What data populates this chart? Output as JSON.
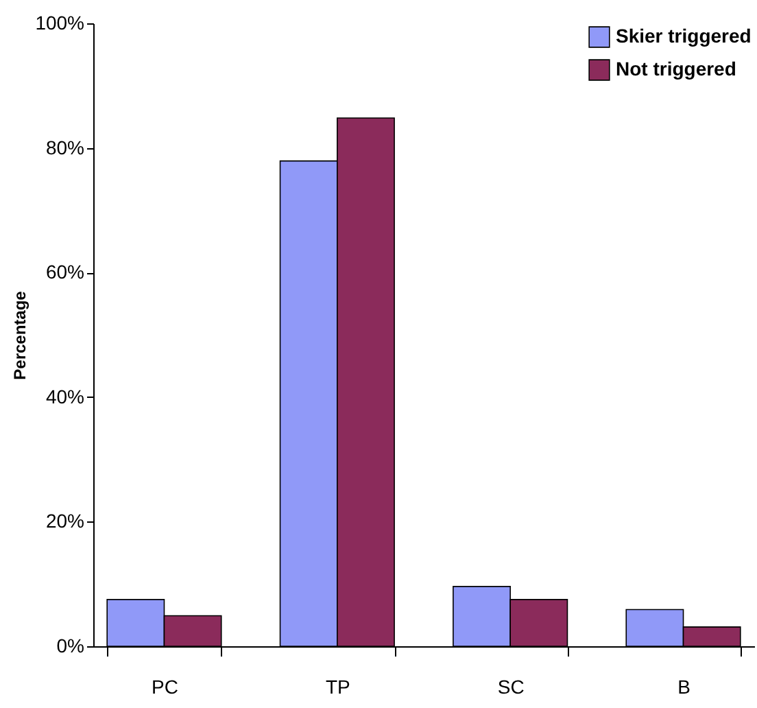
{
  "chart_data": {
    "type": "bar",
    "ylabel": "Percentage",
    "categories": [
      "PC",
      "TP",
      "SC",
      "B"
    ],
    "series": [
      {
        "name": "Skier triggered",
        "color": "#9099f8",
        "values": [
          7.5,
          77.9,
          9.6,
          5.9
        ]
      },
      {
        "name": "Not triggered",
        "color": "#8b2b5b",
        "values": [
          4.9,
          84.8,
          7.5,
          3.1
        ]
      }
    ],
    "ylim": [
      0,
      100
    ],
    "yticks": [
      {
        "value": 0,
        "label": "0%"
      },
      {
        "value": 20,
        "label": "20%"
      },
      {
        "value": 40,
        "label": "40%"
      },
      {
        "value": 60,
        "label": "60%"
      },
      {
        "value": 80,
        "label": "80%"
      },
      {
        "value": 100,
        "label": "100%"
      }
    ],
    "grid": false,
    "legend": "top right"
  }
}
